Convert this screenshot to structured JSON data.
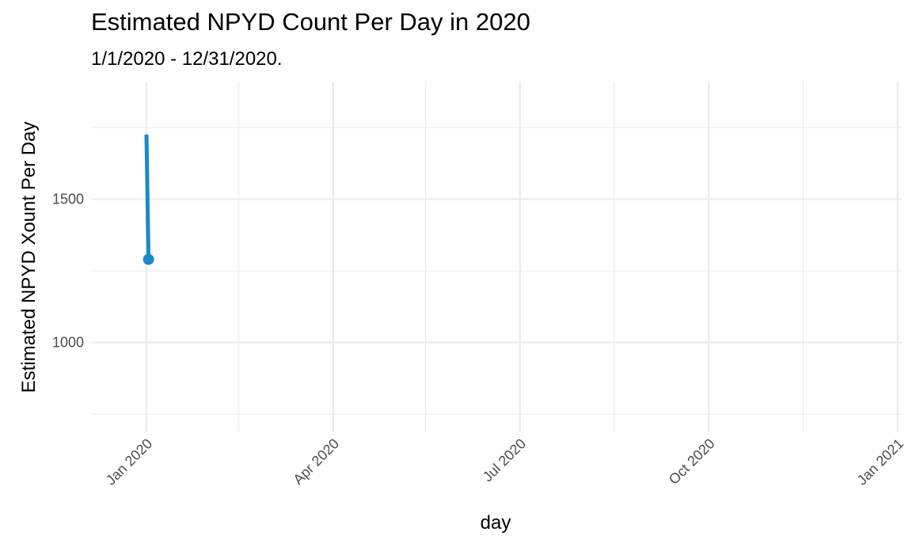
{
  "chart_data": {
    "type": "line",
    "title": "Estimated NPYD Count Per Day in 2020",
    "subtitle": "1/1/2020 - 12/31/2020.",
    "xlabel": "day",
    "ylabel": "Estimated NPYD Xount Per Day",
    "x_type": "date",
    "xlim": [
      "2019-12-05",
      "2021-01-03"
    ],
    "ylim": [
      690,
      1910
    ],
    "x_ticks": [
      {
        "value": "2020-01-01",
        "label": "Jan 2020"
      },
      {
        "value": "2020-04-01",
        "label": "Apr 2020"
      },
      {
        "value": "2020-07-01",
        "label": "Jul 2020"
      },
      {
        "value": "2020-10-01",
        "label": "Oct 2020"
      },
      {
        "value": "2021-01-01",
        "label": "Jan 2021"
      }
    ],
    "x_minor_ticks": [
      "2020-02-15",
      "2020-05-16",
      "2020-08-16",
      "2020-11-16"
    ],
    "y_ticks": [
      {
        "value": 1000,
        "label": "1000"
      },
      {
        "value": 1500,
        "label": "1500"
      }
    ],
    "y_minor_ticks": [
      750,
      1250,
      1750
    ],
    "grid": true,
    "legend": "none",
    "series": [
      {
        "color": "#1a8ac6",
        "points": [
          {
            "x": "2020-01-01",
            "y": 1725
          },
          {
            "x": "2020-01-02",
            "y": 1290
          }
        ],
        "marker_at_last_point": true
      }
    ]
  }
}
